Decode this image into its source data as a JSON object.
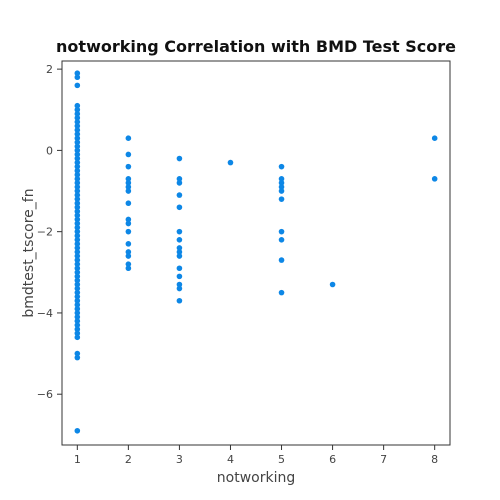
{
  "chart_data": {
    "type": "scatter",
    "title": "notworking Correlation with BMD Test Score",
    "xlabel": "notworking",
    "ylabel": "bmdtest_tscore_fn",
    "xlim": [
      0.7,
      8.3
    ],
    "ylim": [
      -7.25,
      2.2
    ],
    "x_ticks": [
      {
        "value": 1,
        "label": "1"
      },
      {
        "value": 2,
        "label": "2"
      },
      {
        "value": 3,
        "label": "3"
      },
      {
        "value": 4,
        "label": "4"
      },
      {
        "value": 5,
        "label": "5"
      },
      {
        "value": 6,
        "label": "6"
      },
      {
        "value": 7,
        "label": "7"
      },
      {
        "value": 8,
        "label": "8"
      }
    ],
    "y_ticks": [
      {
        "value": 2,
        "label": "2"
      },
      {
        "value": 0,
        "label": "0"
      },
      {
        "value": -2,
        "label": "−2"
      },
      {
        "value": -4,
        "label": "−4"
      },
      {
        "value": -6,
        "label": "−6"
      }
    ],
    "grid": false,
    "colors": {
      "point": "#0d87e6",
      "frame": "#333333",
      "text": "#444444"
    },
    "points": [
      {
        "x": 1,
        "y": 1.9
      },
      {
        "x": 1,
        "y": 1.8
      },
      {
        "x": 1,
        "y": 1.6
      },
      {
        "x": 1,
        "y": 1.1
      },
      {
        "x": 1,
        "y": 1.0
      },
      {
        "x": 1,
        "y": 0.9
      },
      {
        "x": 1,
        "y": 0.8
      },
      {
        "x": 1,
        "y": 0.7
      },
      {
        "x": 1,
        "y": 0.6
      },
      {
        "x": 1,
        "y": 0.5
      },
      {
        "x": 1,
        "y": 0.4
      },
      {
        "x": 1,
        "y": 0.3
      },
      {
        "x": 1,
        "y": 0.2
      },
      {
        "x": 1,
        "y": 0.1
      },
      {
        "x": 1,
        "y": 0.0
      },
      {
        "x": 1,
        "y": -0.1
      },
      {
        "x": 1,
        "y": -0.2
      },
      {
        "x": 1,
        "y": -0.3
      },
      {
        "x": 1,
        "y": -0.4
      },
      {
        "x": 1,
        "y": -0.5
      },
      {
        "x": 1,
        "y": -0.6
      },
      {
        "x": 1,
        "y": -0.7
      },
      {
        "x": 1,
        "y": -0.8
      },
      {
        "x": 1,
        "y": -0.9
      },
      {
        "x": 1,
        "y": -1.0
      },
      {
        "x": 1,
        "y": -1.1
      },
      {
        "x": 1,
        "y": -1.2
      },
      {
        "x": 1,
        "y": -1.3
      },
      {
        "x": 1,
        "y": -1.4
      },
      {
        "x": 1,
        "y": -1.5
      },
      {
        "x": 1,
        "y": -1.6
      },
      {
        "x": 1,
        "y": -1.7
      },
      {
        "x": 1,
        "y": -1.8
      },
      {
        "x": 1,
        "y": -1.9
      },
      {
        "x": 1,
        "y": -2.0
      },
      {
        "x": 1,
        "y": -2.1
      },
      {
        "x": 1,
        "y": -2.2
      },
      {
        "x": 1,
        "y": -2.3
      },
      {
        "x": 1,
        "y": -2.4
      },
      {
        "x": 1,
        "y": -2.5
      },
      {
        "x": 1,
        "y": -2.6
      },
      {
        "x": 1,
        "y": -2.7
      },
      {
        "x": 1,
        "y": -2.8
      },
      {
        "x": 1,
        "y": -2.9
      },
      {
        "x": 1,
        "y": -3.0
      },
      {
        "x": 1,
        "y": -3.1
      },
      {
        "x": 1,
        "y": -3.2
      },
      {
        "x": 1,
        "y": -3.3
      },
      {
        "x": 1,
        "y": -3.4
      },
      {
        "x": 1,
        "y": -3.5
      },
      {
        "x": 1,
        "y": -3.6
      },
      {
        "x": 1,
        "y": -3.7
      },
      {
        "x": 1,
        "y": -3.8
      },
      {
        "x": 1,
        "y": -3.9
      },
      {
        "x": 1,
        "y": -4.0
      },
      {
        "x": 1,
        "y": -4.1
      },
      {
        "x": 1,
        "y": -4.2
      },
      {
        "x": 1,
        "y": -4.3
      },
      {
        "x": 1,
        "y": -4.4
      },
      {
        "x": 1,
        "y": -4.5
      },
      {
        "x": 1,
        "y": -4.6
      },
      {
        "x": 1,
        "y": -5.0
      },
      {
        "x": 1,
        "y": -5.1
      },
      {
        "x": 1,
        "y": -6.9
      },
      {
        "x": 2,
        "y": 0.3
      },
      {
        "x": 2,
        "y": -0.1
      },
      {
        "x": 2,
        "y": -0.4
      },
      {
        "x": 2,
        "y": -0.7
      },
      {
        "x": 2,
        "y": -0.8
      },
      {
        "x": 2,
        "y": -0.9
      },
      {
        "x": 2,
        "y": -1.0
      },
      {
        "x": 2,
        "y": -1.3
      },
      {
        "x": 2,
        "y": -1.7
      },
      {
        "x": 2,
        "y": -1.8
      },
      {
        "x": 2,
        "y": -2.0
      },
      {
        "x": 2,
        "y": -2.3
      },
      {
        "x": 2,
        "y": -2.5
      },
      {
        "x": 2,
        "y": -2.6
      },
      {
        "x": 2,
        "y": -2.8
      },
      {
        "x": 2,
        "y": -2.9
      },
      {
        "x": 3,
        "y": -0.2
      },
      {
        "x": 3,
        "y": -0.7
      },
      {
        "x": 3,
        "y": -0.8
      },
      {
        "x": 3,
        "y": -1.1
      },
      {
        "x": 3,
        "y": -1.4
      },
      {
        "x": 3,
        "y": -2.0
      },
      {
        "x": 3,
        "y": -2.2
      },
      {
        "x": 3,
        "y": -2.4
      },
      {
        "x": 3,
        "y": -2.5
      },
      {
        "x": 3,
        "y": -2.6
      },
      {
        "x": 3,
        "y": -2.9
      },
      {
        "x": 3,
        "y": -3.1
      },
      {
        "x": 3,
        "y": -3.3
      },
      {
        "x": 3,
        "y": -3.4
      },
      {
        "x": 3,
        "y": -3.7
      },
      {
        "x": 4,
        "y": -0.3
      },
      {
        "x": 5,
        "y": -0.4
      },
      {
        "x": 5,
        "y": -0.7
      },
      {
        "x": 5,
        "y": -0.8
      },
      {
        "x": 5,
        "y": -0.9
      },
      {
        "x": 5,
        "y": -1.0
      },
      {
        "x": 5,
        "y": -1.2
      },
      {
        "x": 5,
        "y": -2.0
      },
      {
        "x": 5,
        "y": -2.2
      },
      {
        "x": 5,
        "y": -2.7
      },
      {
        "x": 5,
        "y": -3.5
      },
      {
        "x": 6,
        "y": -3.3
      },
      {
        "x": 8,
        "y": 0.3
      },
      {
        "x": 8,
        "y": -0.7
      }
    ]
  }
}
